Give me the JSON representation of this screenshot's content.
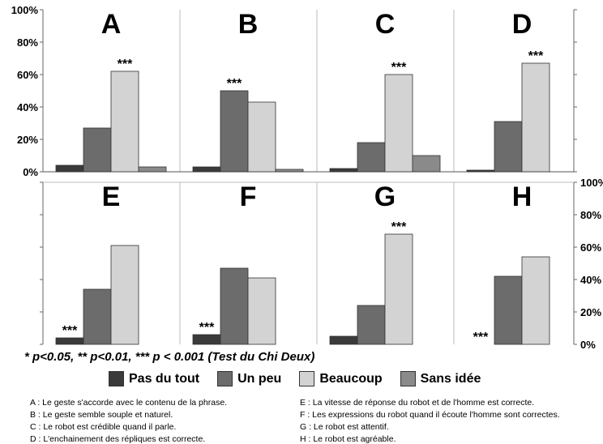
{
  "chart_data": {
    "type": "bar",
    "series_names": [
      "Pas du tout",
      "Un peu",
      "Beaucoup",
      "Sans idée"
    ],
    "colors": [
      "#3a3a3a",
      "#6c6c6c",
      "#d3d3d3",
      "#8a8a8a"
    ],
    "ylim": [
      0,
      100
    ],
    "yticks": [
      "0%",
      "20%",
      "40%",
      "60%",
      "80%",
      "100%"
    ],
    "panels": [
      {
        "label": "A",
        "values": [
          4,
          27,
          62,
          3
        ],
        "significance": "***",
        "sig_over": 2
      },
      {
        "label": "B",
        "values": [
          3,
          50,
          43,
          1.5
        ],
        "significance": "***",
        "sig_over": 1
      },
      {
        "label": "C",
        "values": [
          2,
          18,
          60,
          10
        ],
        "significance": "***",
        "sig_over": 2
      },
      {
        "label": "D",
        "values": [
          1,
          31,
          67,
          0
        ],
        "significance": "***",
        "sig_over": 2
      },
      {
        "label": "E",
        "values": [
          4,
          34,
          61,
          0
        ],
        "significance": "***",
        "sig_over": 0
      },
      {
        "label": "F",
        "values": [
          6,
          47,
          41,
          0
        ],
        "significance": "***",
        "sig_over": 0
      },
      {
        "label": "G",
        "values": [
          5,
          24,
          68,
          0
        ],
        "significance": "***",
        "sig_over": 2
      },
      {
        "label": "H",
        "values": [
          0,
          42,
          54,
          0
        ],
        "significance": "***",
        "sig_over": 0
      }
    ],
    "footnote": "* p<0.05, ** p<0.01, *** p < 0.001 (Test du Chi Deux)",
    "captions": [
      "A : Le geste s'accorde avec le contenu de la phrase.",
      "B : Le geste semble souple et naturel.",
      "C : Le robot est crédible quand il parle.",
      "D : L'enchainement des répliques est correcte.",
      "E : La vitesse de réponse du robot et de l'homme est correcte.",
      "F : Les expressions du robot quand il écoute l'homme sont correctes.",
      "G : Le robot est attentif.",
      "H : Le robot est agréable."
    ]
  }
}
